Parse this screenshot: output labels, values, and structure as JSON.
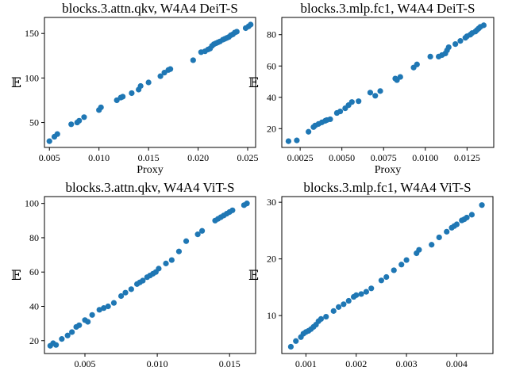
{
  "chart_data": [
    {
      "type": "scatter",
      "title": "blocks.3.attn.qkv, W4A4 DeiT-S",
      "xlabel": "Proxy",
      "ylabel": "𝔼",
      "xlim": [
        0.0045,
        0.0258
      ],
      "ylim": [
        22,
        168
      ],
      "xticks": [
        0.005,
        0.01,
        0.015,
        0.02,
        0.025
      ],
      "xtick_labels": [
        "0.005",
        "0.010",
        "0.015",
        "0.020",
        "0.025"
      ],
      "yticks": [
        50,
        100,
        150
      ],
      "ytick_labels": [
        "50",
        "100",
        "150"
      ],
      "color": "#1f77b4",
      "points": [
        [
          0.005,
          29
        ],
        [
          0.0055,
          34
        ],
        [
          0.0058,
          37
        ],
        [
          0.0072,
          48
        ],
        [
          0.0078,
          50
        ],
        [
          0.008,
          52
        ],
        [
          0.0085,
          56
        ],
        [
          0.01,
          64
        ],
        [
          0.0102,
          67
        ],
        [
          0.0118,
          75
        ],
        [
          0.0122,
          78
        ],
        [
          0.0124,
          79
        ],
        [
          0.0133,
          83
        ],
        [
          0.014,
          87
        ],
        [
          0.0142,
          91
        ],
        [
          0.015,
          95
        ],
        [
          0.0162,
          102
        ],
        [
          0.0166,
          106
        ],
        [
          0.017,
          109
        ],
        [
          0.0172,
          110
        ],
        [
          0.0195,
          120
        ],
        [
          0.0203,
          129
        ],
        [
          0.0207,
          130
        ],
        [
          0.021,
          132
        ],
        [
          0.0212,
          133
        ],
        [
          0.0214,
          136
        ],
        [
          0.0216,
          138
        ],
        [
          0.0218,
          139
        ],
        [
          0.022,
          140
        ],
        [
          0.0222,
          141
        ],
        [
          0.0225,
          143
        ],
        [
          0.0227,
          144
        ],
        [
          0.0229,
          145
        ],
        [
          0.0231,
          146
        ],
        [
          0.0233,
          148
        ],
        [
          0.0235,
          149
        ],
        [
          0.0237,
          151
        ],
        [
          0.0239,
          152
        ],
        [
          0.0248,
          156
        ],
        [
          0.0251,
          158
        ],
        [
          0.0253,
          160
        ]
      ]
    },
    {
      "type": "scatter",
      "title": "blocks.3.mlp.fc1, W4A4 DeiT-S",
      "xlabel": "Proxy",
      "ylabel": "𝔼",
      "xlim": [
        0.0014,
        0.0141
      ],
      "ylim": [
        8,
        91
      ],
      "xticks": [
        0.0025,
        0.005,
        0.0075,
        0.01,
        0.0125
      ],
      "xtick_labels": [
        "0.0025",
        "0.0050",
        "0.0075",
        "0.0100",
        "0.0125"
      ],
      "yticks": [
        20,
        40,
        60,
        80
      ],
      "ytick_labels": [
        "20",
        "40",
        "60",
        "80"
      ],
      "color": "#1f77b4",
      "points": [
        [
          0.0018,
          12
        ],
        [
          0.0023,
          12.5
        ],
        [
          0.003,
          18
        ],
        [
          0.0033,
          21
        ],
        [
          0.0034,
          22
        ],
        [
          0.0036,
          23
        ],
        [
          0.0038,
          24
        ],
        [
          0.004,
          25
        ],
        [
          0.0041,
          25.5
        ],
        [
          0.0043,
          26
        ],
        [
          0.0047,
          30
        ],
        [
          0.0049,
          31
        ],
        [
          0.0052,
          33
        ],
        [
          0.0054,
          35
        ],
        [
          0.0056,
          37
        ],
        [
          0.006,
          37.5
        ],
        [
          0.0067,
          43
        ],
        [
          0.007,
          41
        ],
        [
          0.0073,
          44
        ],
        [
          0.0082,
          52
        ],
        [
          0.0083,
          51
        ],
        [
          0.0085,
          53
        ],
        [
          0.0093,
          59
        ],
        [
          0.0095,
          61
        ],
        [
          0.0103,
          66
        ],
        [
          0.0108,
          66
        ],
        [
          0.011,
          67
        ],
        [
          0.0112,
          68
        ],
        [
          0.0113,
          70
        ],
        [
          0.0114,
          72
        ],
        [
          0.0118,
          74
        ],
        [
          0.0121,
          76
        ],
        [
          0.0124,
          78
        ],
        [
          0.0125,
          79
        ],
        [
          0.0127,
          80
        ],
        [
          0.0128,
          81
        ],
        [
          0.013,
          82
        ],
        [
          0.0131,
          83
        ],
        [
          0.0132,
          84
        ],
        [
          0.0133,
          85
        ],
        [
          0.0135,
          86
        ]
      ]
    },
    {
      "type": "scatter",
      "title": "blocks.3.attn.qkv, W4A4 ViT-S",
      "xlabel": "Proxy",
      "ylabel": "𝔼",
      "xlim": [
        0.0022,
        0.0168
      ],
      "ylim": [
        12.5,
        104
      ],
      "xticks": [
        0.005,
        0.01,
        0.015
      ],
      "xtick_labels": [
        "0.005",
        "0.010",
        "0.015"
      ],
      "yticks": [
        20,
        40,
        60,
        80,
        100
      ],
      "ytick_labels": [
        "20",
        "40",
        "60",
        "80",
        "100"
      ],
      "color": "#1f77b4",
      "points": [
        [
          0.0026,
          17
        ],
        [
          0.0028,
          18.5
        ],
        [
          0.003,
          17.5
        ],
        [
          0.0034,
          21
        ],
        [
          0.0038,
          23
        ],
        [
          0.0041,
          25
        ],
        [
          0.0044,
          28
        ],
        [
          0.0046,
          29
        ],
        [
          0.005,
          32
        ],
        [
          0.0052,
          31
        ],
        [
          0.0055,
          35
        ],
        [
          0.006,
          38
        ],
        [
          0.0063,
          39
        ],
        [
          0.0066,
          40
        ],
        [
          0.007,
          42
        ],
        [
          0.0075,
          46
        ],
        [
          0.0078,
          48
        ],
        [
          0.0082,
          50
        ],
        [
          0.0086,
          53
        ],
        [
          0.0088,
          54
        ],
        [
          0.009,
          55
        ],
        [
          0.0093,
          57
        ],
        [
          0.0095,
          58
        ],
        [
          0.0097,
          59
        ],
        [
          0.0099,
          60
        ],
        [
          0.0101,
          62
        ],
        [
          0.0106,
          65
        ],
        [
          0.011,
          67
        ],
        [
          0.0115,
          72
        ],
        [
          0.012,
          78
        ],
        [
          0.0128,
          82
        ],
        [
          0.0131,
          84
        ],
        [
          0.014,
          90
        ],
        [
          0.0142,
          91
        ],
        [
          0.0144,
          92
        ],
        [
          0.0146,
          93
        ],
        [
          0.0148,
          94
        ],
        [
          0.015,
          95
        ],
        [
          0.0152,
          96
        ],
        [
          0.016,
          99
        ],
        [
          0.0162,
          100
        ]
      ]
    },
    {
      "type": "scatter",
      "title": "blocks.3.mlp.fc1, W4A4 ViT-S",
      "xlabel": "Proxy",
      "ylabel": "𝔼",
      "xlim": [
        0.00052,
        0.00472
      ],
      "ylim": [
        3.3,
        31
      ],
      "xticks": [
        0.001,
        0.002,
        0.003,
        0.004
      ],
      "xtick_labels": [
        "0.001",
        "0.002",
        "0.003",
        "0.004"
      ],
      "yticks": [
        10,
        20,
        30
      ],
      "ytick_labels": [
        "10",
        "20",
        "30"
      ],
      "color": "#1f77b4",
      "points": [
        [
          0.0007,
          4.5
        ],
        [
          0.0008,
          5.5
        ],
        [
          0.0009,
          6.2
        ],
        [
          0.00095,
          6.8
        ],
        [
          0.001,
          7.1
        ],
        [
          0.00105,
          7.3
        ],
        [
          0.0011,
          7.6
        ],
        [
          0.00115,
          8.0
        ],
        [
          0.0012,
          8.4
        ],
        [
          0.00125,
          9.0
        ],
        [
          0.0013,
          9.4
        ],
        [
          0.0014,
          9.8
        ],
        [
          0.00155,
          10.8
        ],
        [
          0.00165,
          11.5
        ],
        [
          0.00175,
          12.0
        ],
        [
          0.00185,
          12.6
        ],
        [
          0.00195,
          13.3
        ],
        [
          0.002,
          13.6
        ],
        [
          0.0021,
          13.8
        ],
        [
          0.0022,
          14.2
        ],
        [
          0.0023,
          14.8
        ],
        [
          0.0025,
          16.2
        ],
        [
          0.0026,
          16.8
        ],
        [
          0.00275,
          18.0
        ],
        [
          0.0029,
          19.0
        ],
        [
          0.003,
          19.8
        ],
        [
          0.0032,
          21.0
        ],
        [
          0.00325,
          21.6
        ],
        [
          0.0035,
          22.5
        ],
        [
          0.00365,
          23.8
        ],
        [
          0.0038,
          24.8
        ],
        [
          0.0039,
          25.5
        ],
        [
          0.00395,
          25.8
        ],
        [
          0.004,
          26.1
        ],
        [
          0.0041,
          26.8
        ],
        [
          0.00415,
          27.0
        ],
        [
          0.0042,
          27.3
        ],
        [
          0.0043,
          27.8
        ],
        [
          0.0045,
          29.5
        ]
      ]
    }
  ]
}
